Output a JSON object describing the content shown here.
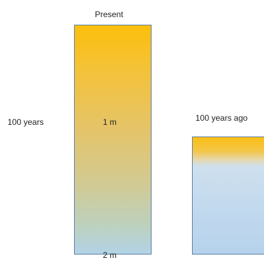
{
  "diagram": {
    "present_label": "Present",
    "ago_label": "100 years ago",
    "time_span_label": "100 years",
    "depth_1_label": "1 m",
    "depth_2_label": "2 m"
  },
  "colors": {
    "top_layer": "#fbbf0c",
    "bottom_layer": "#b3d3e6",
    "border": "#5b7fa6"
  }
}
